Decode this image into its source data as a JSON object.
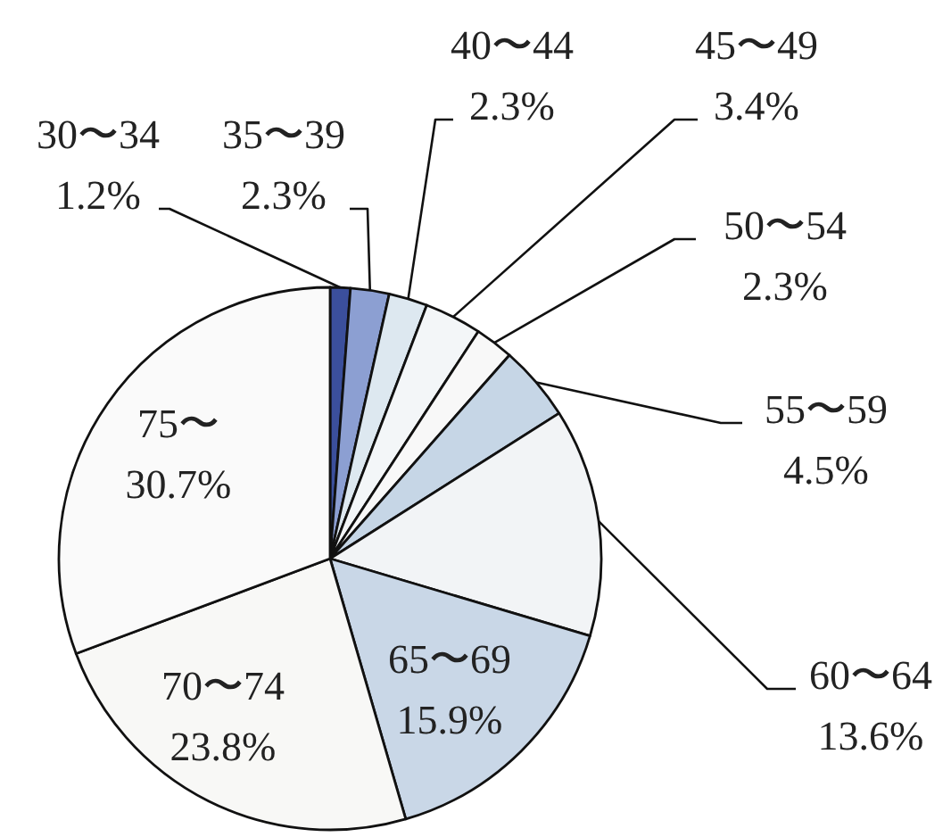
{
  "chart_data": {
    "type": "pie",
    "categories": [
      "30〜34",
      "35〜39",
      "40〜44",
      "45〜49",
      "50〜54",
      "55〜59",
      "60〜64",
      "65〜69",
      "70〜74",
      "75〜"
    ],
    "values": [
      1.2,
      2.3,
      2.3,
      3.4,
      2.3,
      4.5,
      13.6,
      15.9,
      23.8,
      30.7
    ],
    "value_labels": [
      "1.2%",
      "2.3%",
      "2.3%",
      "3.4%",
      "2.3%",
      "4.5%",
      "13.6%",
      "15.9%",
      "23.8%",
      "30.7%"
    ],
    "colors": [
      "#3b4f9c",
      "#8c9fd2",
      "#dde8f0",
      "#f3f6f8",
      "#f8f8f8",
      "#c6d6e6",
      "#f2f4f6",
      "#c9d7e7",
      "#f8f8f6",
      "#fafafa"
    ]
  }
}
